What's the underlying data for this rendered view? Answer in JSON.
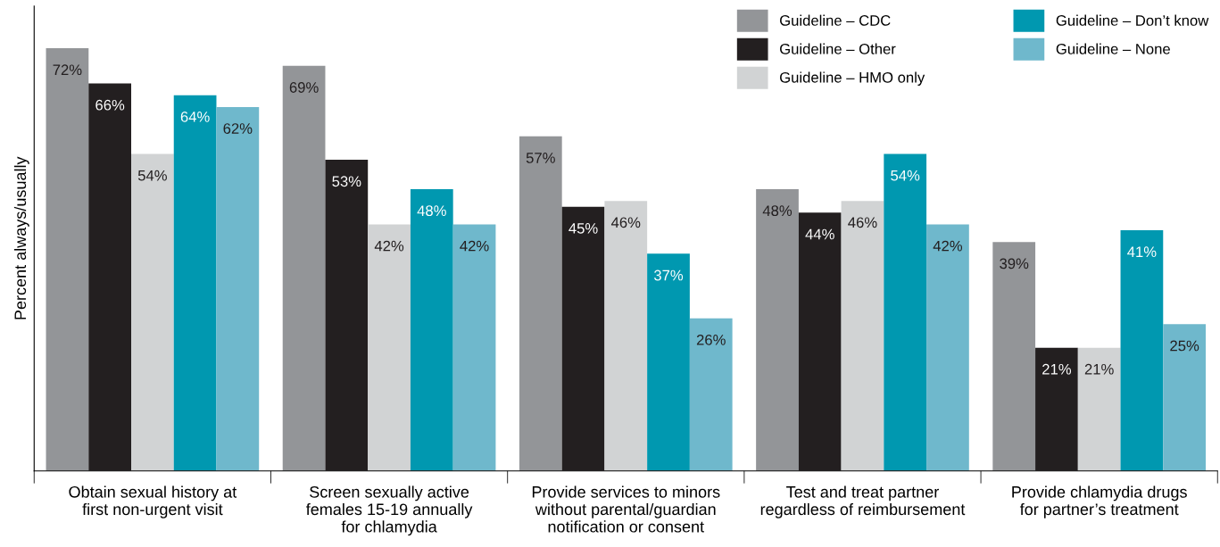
{
  "chart_data": {
    "type": "bar",
    "ylabel": "Percent always/usually",
    "categories": [
      "Obtain sexual history at\nfirst non-urgent visit",
      "Screen sexually active\nfemales 15-19 annually\nfor chlamydia",
      "Provide services to minors\nwithout parental/guardian\nnotification or consent",
      "Test and treat partner\nregardless of reimbursement",
      "Provide chlamydia drugs\nfor partner’s treatment"
    ],
    "series": [
      {
        "name": "Guideline – CDC",
        "color": "#939598",
        "values": [
          72,
          69,
          57,
          48,
          39
        ],
        "value_labels": [
          "72%",
          "69%",
          "57%",
          "48%",
          "39%"
        ]
      },
      {
        "name": "Guideline – Other",
        "color": "#231f20",
        "values": [
          66,
          53,
          45,
          44,
          21
        ],
        "value_labels": [
          "66%",
          "53%",
          "45%",
          "44%",
          "21%"
        ]
      },
      {
        "name": "Guideline – HMO only",
        "color": "#d1d3d4",
        "values": [
          54,
          42,
          46,
          46,
          21
        ],
        "value_labels": [
          "54%",
          "42%",
          "46%",
          "46%",
          "21%"
        ]
      },
      {
        "name": "Guideline – Don’t know",
        "color": "#0098b0",
        "values": [
          64,
          48,
          37,
          54,
          41
        ],
        "value_labels": [
          "64%",
          "48%",
          "37%",
          "54%",
          "41%"
        ]
      },
      {
        "name": "Guideline – None",
        "color": "#6fb8cc",
        "values": [
          62,
          42,
          26,
          42,
          25
        ],
        "value_labels": [
          "62%",
          "42%",
          "26%",
          "42%",
          "25%"
        ]
      }
    ],
    "tick_labels": "x",
    "legend": "top right",
    "grid": false
  }
}
